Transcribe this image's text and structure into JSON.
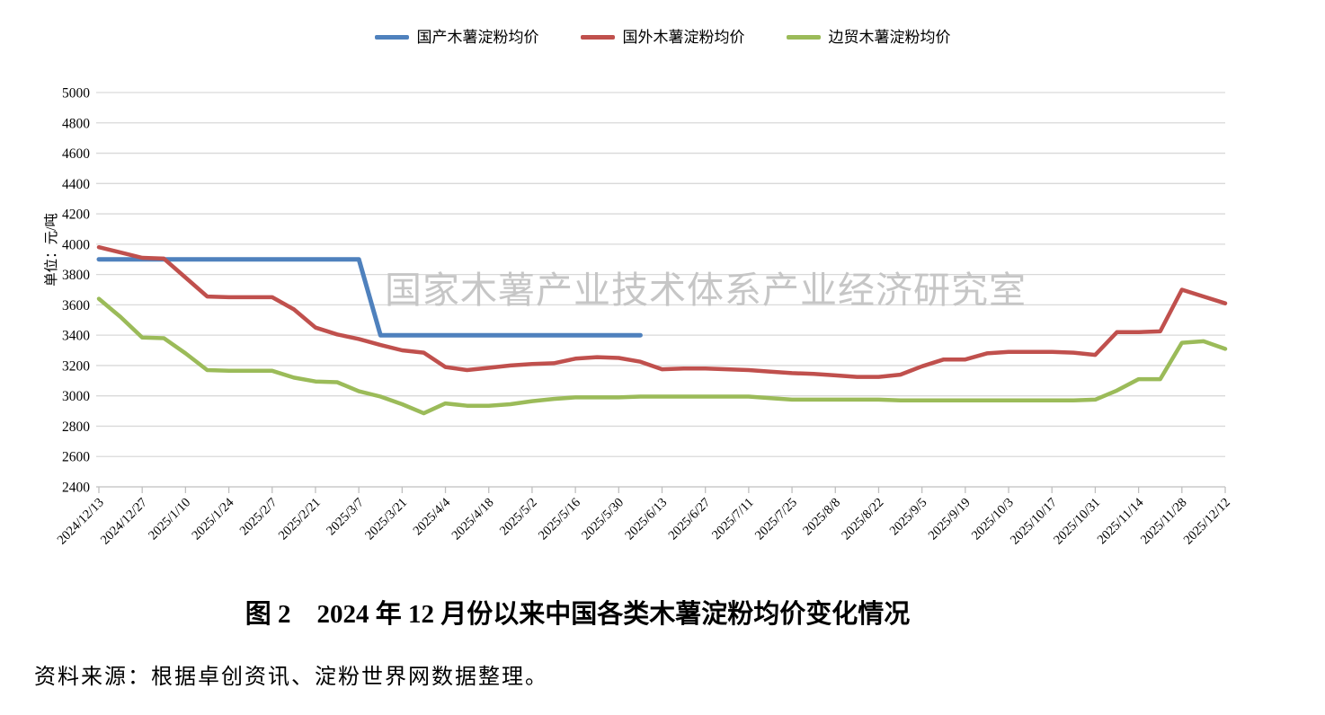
{
  "legend": {
    "items": [
      {
        "label": "国产木薯淀粉均价",
        "color": "#4F81BD"
      },
      {
        "label": "国外木薯淀粉均价",
        "color": "#C0504D"
      },
      {
        "label": "边贸木薯淀粉均价",
        "color": "#9BBB59"
      }
    ]
  },
  "watermark": "国家木薯产业技术体系产业经济研究室",
  "caption": "图 2　2024 年 12 月份以来中国各类木薯淀粉均价变化情况",
  "source_note": "资料来源：根据卓创资讯、淀粉世界网数据整理。",
  "colors": {
    "domestic": "#4F81BD",
    "foreign": "#C0504D",
    "border_trade": "#9BBB59",
    "gridline": "#D9D9D9",
    "axis": "#BFBFBF",
    "watermark": "#C6C6C6",
    "text": "#000000"
  },
  "chart_data": {
    "type": "line",
    "title": "",
    "xlabel": "",
    "ylabel": "单位：元/吨",
    "ylim": [
      2400,
      5000
    ],
    "ytick_step": 200,
    "grid": true,
    "legend_position": "top",
    "x": [
      "2024/12/13",
      "2024/12/20",
      "2024/12/27",
      "2025/1/3",
      "2025/1/10",
      "2025/1/17",
      "2025/1/24",
      "2025/1/31",
      "2025/2/7",
      "2025/2/14",
      "2025/2/21",
      "2025/2/28",
      "2025/3/7",
      "2025/3/14",
      "2025/3/21",
      "2025/3/28",
      "2025/4/4",
      "2025/4/11",
      "2025/4/18",
      "2025/4/25",
      "2025/5/2",
      "2025/5/9",
      "2025/5/16",
      "2025/5/23",
      "2025/5/30",
      "2025/6/6",
      "2025/6/13",
      "2025/6/20",
      "2025/6/27",
      "2025/7/4",
      "2025/7/11",
      "2025/7/18",
      "2025/7/25",
      "2025/8/1",
      "2025/8/8",
      "2025/8/15",
      "2025/8/22",
      "2025/8/29",
      "2025/9/5",
      "2025/9/12",
      "2025/9/19",
      "2025/9/26",
      "2025/10/3",
      "2025/10/10",
      "2025/10/17",
      "2025/10/24",
      "2025/10/31",
      "2025/11/7",
      "2025/11/14",
      "2025/11/21",
      "2025/11/28",
      "2025/12/5",
      "2025/12/12"
    ],
    "x_tick_labels": [
      "2024/12/13",
      "2024/12/27",
      "2025/1/10",
      "2025/1/24",
      "2025/2/7",
      "2025/2/21",
      "2025/3/7",
      "2025/3/21",
      "2025/4/4",
      "2025/4/18",
      "2025/5/2",
      "2025/5/16",
      "2025/5/30",
      "2025/6/13",
      "2025/6/27",
      "2025/7/11",
      "2025/7/25",
      "2025/8/8",
      "2025/8/22",
      "2025/9/5",
      "2025/9/19",
      "2025/10/3",
      "2025/10/17",
      "2025/10/31",
      "2025/11/14",
      "2025/11/28",
      "2025/12/12"
    ],
    "series": [
      {
        "name": "国产木薯淀粉均价",
        "color": "#4F81BD",
        "values": [
          3900,
          3900,
          3900,
          3900,
          3900,
          3900,
          3900,
          3900,
          3900,
          3900,
          3900,
          3900,
          3900,
          3400,
          3400,
          3400,
          3400,
          3400,
          3400,
          3400,
          3400,
          3400,
          3400,
          3400,
          3400,
          3400,
          null,
          null,
          null,
          null,
          null,
          null,
          null,
          null,
          null,
          null,
          null,
          null,
          null,
          null,
          null,
          null,
          null,
          null,
          null,
          null,
          null,
          null,
          null,
          null,
          null,
          null,
          null
        ]
      },
      {
        "name": "国外木薯淀粉均价",
        "color": "#C0504D",
        "values": [
          3980,
          3945,
          3910,
          3905,
          3780,
          3655,
          3650,
          3650,
          3650,
          3570,
          3450,
          3405,
          3375,
          3335,
          3300,
          3285,
          3190,
          3170,
          3185,
          3200,
          3210,
          3215,
          3245,
          3255,
          3250,
          3225,
          3175,
          3180,
          3180,
          3175,
          3170,
          3160,
          3150,
          3145,
          3135,
          3125,
          3125,
          3140,
          3195,
          3240,
          3240,
          3280,
          3290,
          3290,
          3290,
          3285,
          3270,
          3420,
          3420,
          3425,
          3700,
          3655,
          3610
        ]
      },
      {
        "name": "边贸木薯淀粉均价",
        "color": "#9BBB59",
        "values": [
          3640,
          3520,
          3385,
          3380,
          3280,
          3170,
          3165,
          3165,
          3165,
          3120,
          3095,
          3090,
          3030,
          2995,
          2945,
          2885,
          2950,
          2935,
          2935,
          2945,
          2965,
          2980,
          2990,
          2990,
          2990,
          2995,
          2995,
          2995,
          2995,
          2995,
          2995,
          2985,
          2975,
          2975,
          2975,
          2975,
          2975,
          2970,
          2970,
          2970,
          2970,
          2970,
          2970,
          2970,
          2970,
          2970,
          2975,
          3035,
          3110,
          3110,
          3350,
          3360,
          3310
        ]
      }
    ]
  }
}
